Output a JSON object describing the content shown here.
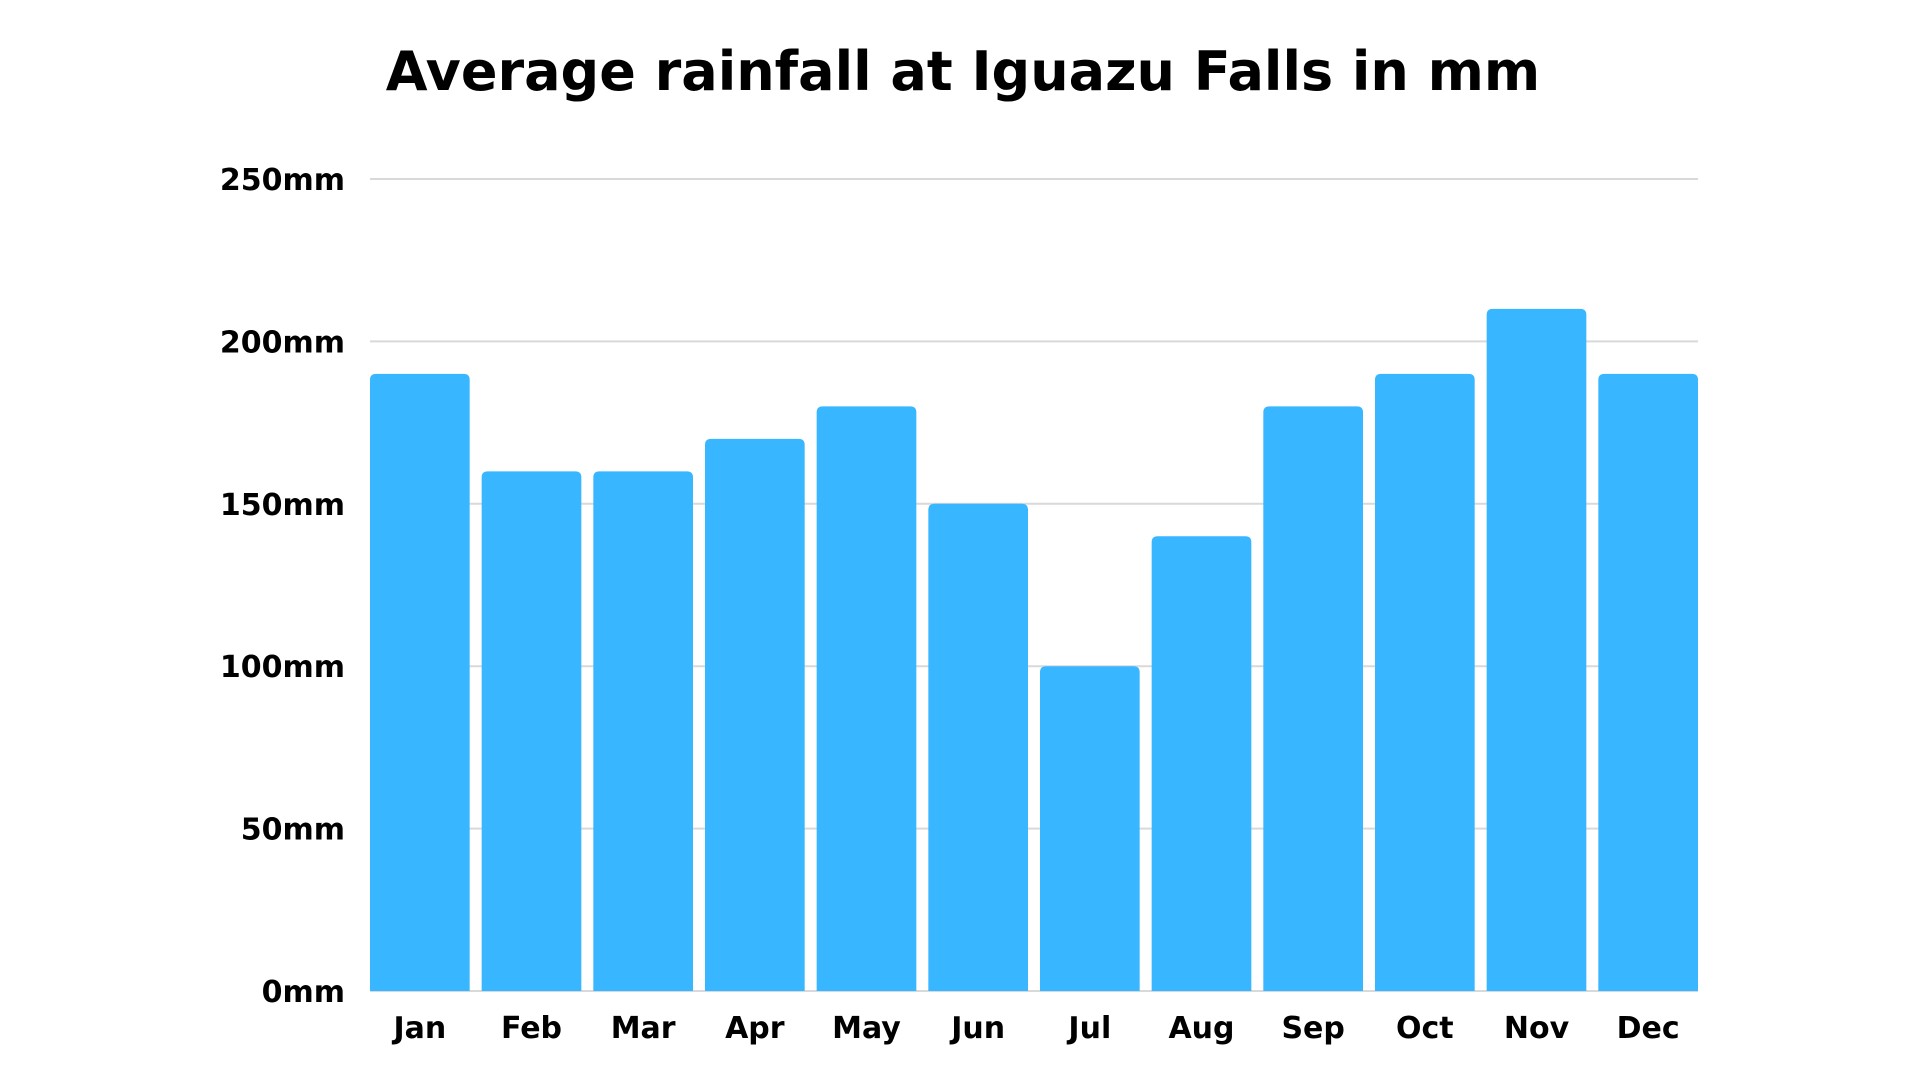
{
  "chart_data": {
    "type": "bar",
    "title": "Average rainfall at Iguazu Falls in mm",
    "xlabel": "",
    "ylabel": "",
    "categories": [
      "Jan",
      "Feb",
      "Mar",
      "Apr",
      "May",
      "Jun",
      "Jul",
      "Aug",
      "Sep",
      "Oct",
      "Nov",
      "Dec"
    ],
    "values": [
      190,
      160,
      160,
      170,
      180,
      150,
      100,
      140,
      180,
      190,
      210,
      190
    ],
    "ylim": [
      0,
      250
    ],
    "yticks": [
      0,
      50,
      100,
      150,
      200,
      250
    ],
    "ytick_labels": [
      "0mm",
      "50mm",
      "100mm",
      "150mm",
      "200mm",
      "250mm"
    ],
    "grid": true,
    "bar_color": "#38B6FF",
    "grid_color": "#D9D9D9"
  }
}
